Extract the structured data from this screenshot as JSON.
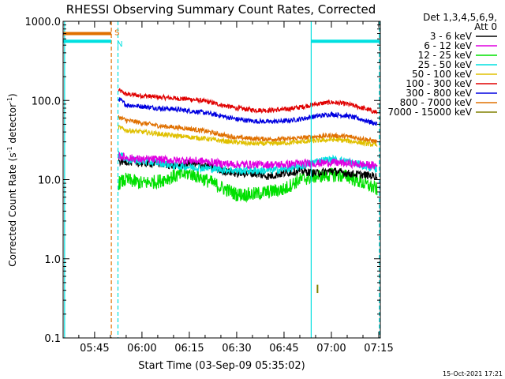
{
  "chart_data": {
    "type": "line",
    "title": "RHESSI Observing Summary Count Rates, Corrected",
    "xlabel": "Start Time (03-Sep-09 05:35:02)",
    "ylabel_main": "Corrected Count Rate (s",
    "ylabel_exp1": "-1",
    "ylabel_mid": " detector",
    "ylabel_exp2": "-1",
    "ylabel_end": ")",
    "ylog": true,
    "ylim": [
      0.1,
      1000
    ],
    "xlim_minutes": [
      35.03,
      135.5
    ],
    "yticks": [
      {
        "value": 1000,
        "label": "1000.0"
      },
      {
        "value": 100,
        "label": "100.0"
      },
      {
        "value": 10,
        "label": "10.0"
      },
      {
        "value": 1,
        "label": "1.0"
      },
      {
        "value": 0.1,
        "label": "0.1"
      }
    ],
    "xticks": [
      {
        "minute": 45,
        "label": "05:45"
      },
      {
        "minute": 60,
        "label": "06:00"
      },
      {
        "minute": 75,
        "label": "06:15"
      },
      {
        "minute": 90,
        "label": "06:30"
      },
      {
        "minute": 105,
        "label": "06:45"
      },
      {
        "minute": 120,
        "label": "07:00"
      },
      {
        "minute": 135,
        "label": "07:15"
      }
    ],
    "legend_header": [
      "Det 1,3,4,5,6,9,",
      "Att 0"
    ],
    "series": [
      {
        "name": "3 - 6 keV",
        "color": "#000000",
        "x": [
          52.6,
          55,
          60,
          65,
          70,
          75,
          80,
          85,
          90,
          95,
          100,
          105,
          110,
          115,
          120,
          125,
          130,
          134.5
        ],
        "y": [
          17,
          17,
          16,
          16,
          15,
          16,
          15,
          13,
          12,
          12,
          11,
          12,
          13,
          12,
          13,
          12,
          11.5,
          11
        ]
      },
      {
        "name": "6 - 12 keV",
        "color": "#e000e0",
        "x": [
          52.6,
          55,
          60,
          65,
          70,
          75,
          80,
          85,
          90,
          95,
          100,
          105,
          110,
          115,
          120,
          125,
          130,
          134.5
        ],
        "y": [
          20,
          19,
          18,
          18,
          17.5,
          17.5,
          17,
          16,
          15.5,
          15.5,
          15.5,
          15.5,
          16,
          16,
          16.5,
          16,
          15.5,
          15
        ]
      },
      {
        "name": "12 - 25 keV",
        "color": "#00e000",
        "x": [
          52.6,
          55,
          60,
          65,
          70,
          75,
          80,
          85,
          90,
          95,
          100,
          105,
          110,
          115,
          120,
          125,
          130,
          134.5
        ],
        "y": [
          9,
          10,
          9,
          9.5,
          11,
          12,
          10,
          8,
          6.5,
          6.5,
          7,
          7.5,
          10,
          11,
          11.5,
          11,
          9,
          7.5
        ]
      },
      {
        "name": "25 - 50 keV",
        "color": "#00e0e0",
        "x": [
          52.6,
          55,
          60,
          65,
          70,
          75,
          80,
          85,
          90,
          95,
          100,
          105,
          110,
          115,
          120,
          125,
          130,
          134.5
        ],
        "y": [
          21,
          18,
          17,
          16.5,
          15,
          14.5,
          14,
          13.5,
          13,
          13,
          13,
          13.5,
          14.5,
          17,
          18,
          17,
          15,
          13.5
        ]
      },
      {
        "name": "50 - 100 keV",
        "color": "#e0c000",
        "x": [
          52.6,
          55,
          60,
          65,
          70,
          75,
          80,
          85,
          90,
          95,
          100,
          105,
          110,
          115,
          120,
          125,
          130,
          134.5
        ],
        "y": [
          46,
          42,
          40,
          38,
          36,
          34.5,
          33,
          31,
          29.5,
          28.5,
          28.5,
          29,
          30,
          31,
          32,
          31,
          29,
          27
        ]
      },
      {
        "name": "100 - 300 keV",
        "color": "#e00000",
        "x": [
          52.6,
          55,
          60,
          65,
          70,
          75,
          80,
          85,
          90,
          95,
          100,
          105,
          110,
          115,
          120,
          125,
          130,
          134.5
        ],
        "y": [
          135,
          120,
          115,
          110,
          107,
          104,
          98,
          88,
          80,
          76,
          75,
          77,
          82,
          90,
          95,
          90,
          80,
          70
        ]
      },
      {
        "name": "300 - 800 keV",
        "color": "#0000e0",
        "x": [
          52.6,
          55,
          60,
          65,
          70,
          75,
          80,
          85,
          90,
          95,
          100,
          105,
          110,
          115,
          120,
          125,
          130,
          134.5
        ],
        "y": [
          105,
          88,
          84,
          80,
          78,
          74,
          70,
          64,
          58,
          55,
          54,
          55,
          58,
          63,
          67,
          64,
          57,
          50
        ]
      },
      {
        "name": "800 - 7000 keV",
        "color": "#e07000",
        "x": [
          52.6,
          55,
          60,
          65,
          70,
          75,
          80,
          85,
          90,
          95,
          100,
          105,
          110,
          115,
          120,
          125,
          130,
          134.5
        ],
        "y": [
          62,
          56,
          52,
          48,
          46,
          44,
          41,
          37,
          34,
          33,
          32.5,
          32.5,
          33.5,
          35,
          36,
          35,
          33,
          30
        ]
      },
      {
        "name": "7000 - 15000 keV",
        "color": "#808000",
        "x": [
          115.6,
          115.6
        ],
        "y": [
          0.37,
          0.47
        ]
      }
    ],
    "flags": [
      {
        "label": "S",
        "color": "#e07000",
        "x_start": 35.03,
        "x_end": 50.3,
        "y": 700
      },
      {
        "label": "N",
        "color": "#00e0e0",
        "x_start": 35.03,
        "x_end": 50.3,
        "y": 560
      }
    ],
    "flag_right": {
      "color": "#00e0e0",
      "x_start": 113.6,
      "x_end": 135.2,
      "y": 560
    },
    "vlines": [
      {
        "x": 35.5,
        "color": "#00e0e0",
        "style": "solid"
      },
      {
        "x": 50.3,
        "color": "#e07000",
        "style": "dashed"
      },
      {
        "x": 52.4,
        "color": "#00e0e0",
        "style": "dashed"
      },
      {
        "x": 113.6,
        "color": "#00e0e0",
        "style": "solid"
      },
      {
        "x": 135.2,
        "color": "#00e0e0",
        "style": "dashed"
      }
    ],
    "footer_date": "15-Oct-2021 17:21"
  }
}
